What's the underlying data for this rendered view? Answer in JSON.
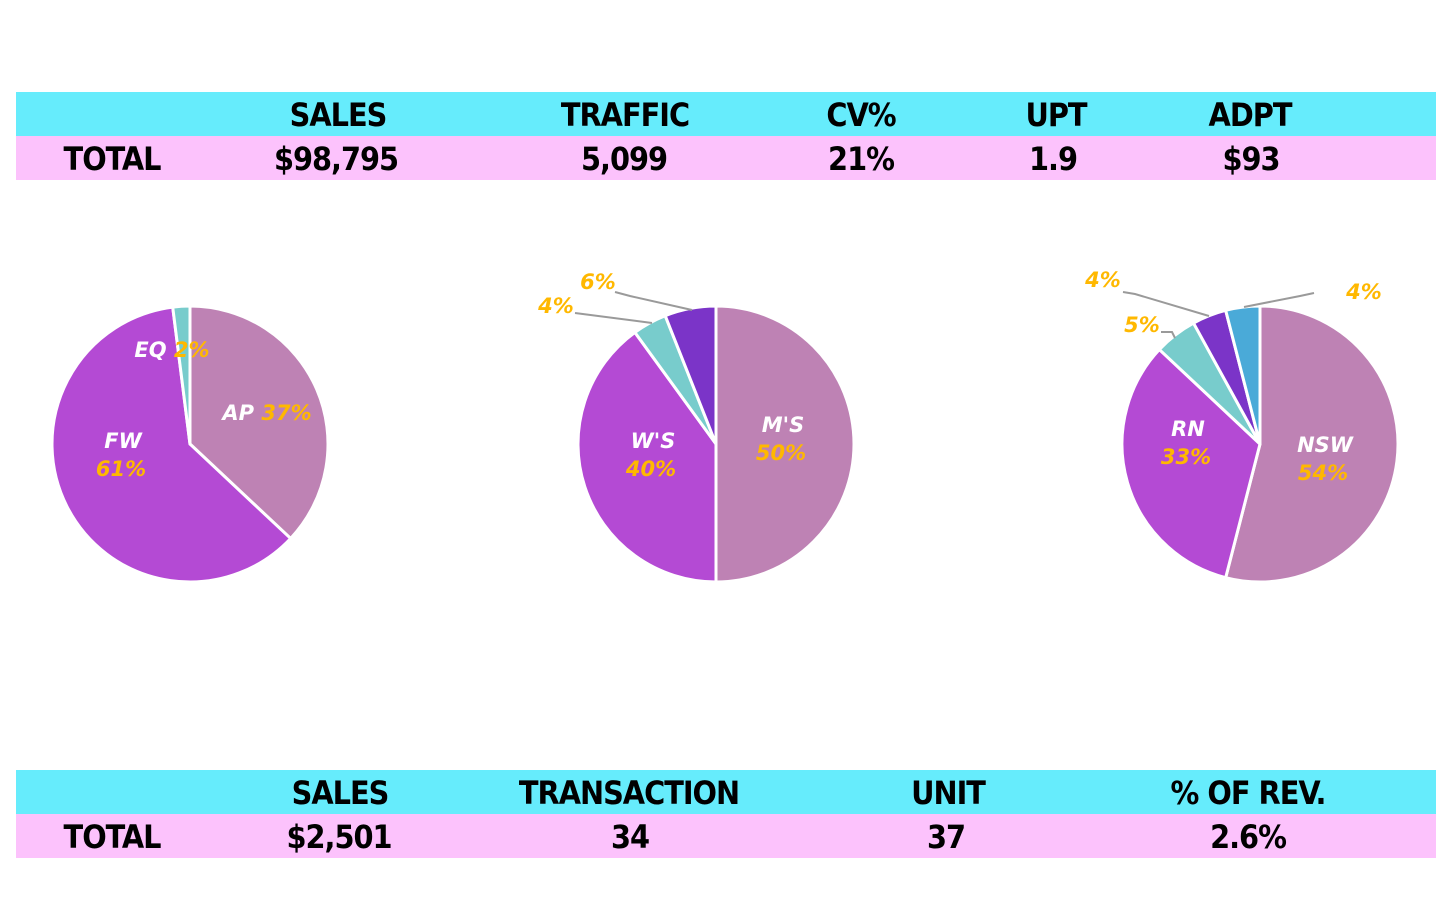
{
  "kpi_top": {
    "headers": [
      "SALES",
      "TRAFFIC",
      "CV%",
      "UPT",
      "ADPT"
    ],
    "row_label": "TOTAL",
    "values": [
      "$98,795",
      "5,099",
      "21%",
      "1.9",
      "$93"
    ]
  },
  "kpi_bottom": {
    "headers": [
      "SALES",
      "TRANSACTION",
      "UNIT",
      "% OF REV."
    ],
    "row_label": "TOTAL",
    "values": [
      "$2,501",
      "34",
      "37",
      "2.6%"
    ]
  },
  "colors": {
    "header_bg": "#66ecfc",
    "row_bg": "#fcc2fc",
    "label_white": "#ffffff",
    "label_percent": "#ffb800",
    "leader_line": "#9a9a9a"
  },
  "chart_data": [
    {
      "type": "pie",
      "slices": [
        {
          "label": "AP",
          "value": 37,
          "pct_text": "37%",
          "color": "#be82b4",
          "layout": "inline"
        },
        {
          "label": "FW",
          "value": 61,
          "pct_text": "61%",
          "color": "#b44ad4",
          "layout": "stacked"
        },
        {
          "label": "EQ",
          "value": 2,
          "pct_text": "2%",
          "color": "#78cccc",
          "layout": "inline"
        }
      ]
    },
    {
      "type": "pie",
      "slices": [
        {
          "label": "M'S",
          "value": 50,
          "pct_text": "50%",
          "color": "#be82b4",
          "layout": "stacked"
        },
        {
          "label": "W'S",
          "value": 40,
          "pct_text": "40%",
          "color": "#b44ad4",
          "layout": "stacked"
        },
        {
          "label": "",
          "value": 4,
          "pct_text": "4%",
          "color": "#78cccc",
          "layout": "callout"
        },
        {
          "label": "",
          "value": 6,
          "pct_text": "6%",
          "color": "#7b34c8",
          "layout": "callout"
        }
      ]
    },
    {
      "type": "pie",
      "slices": [
        {
          "label": "NSW",
          "value": 54,
          "pct_text": "54%",
          "color": "#be82b4",
          "layout": "stacked"
        },
        {
          "label": "RN",
          "value": 33,
          "pct_text": "33%",
          "color": "#b44ad4",
          "layout": "stacked"
        },
        {
          "label": "",
          "value": 5,
          "pct_text": "5%",
          "color": "#78cccc",
          "layout": "callout"
        },
        {
          "label": "",
          "value": 4,
          "pct_text": "4%",
          "color": "#7b34c8",
          "layout": "callout"
        },
        {
          "label": "",
          "value": 4,
          "pct_text": "4%",
          "color": "#4aaad8",
          "layout": "callout"
        }
      ]
    }
  ]
}
